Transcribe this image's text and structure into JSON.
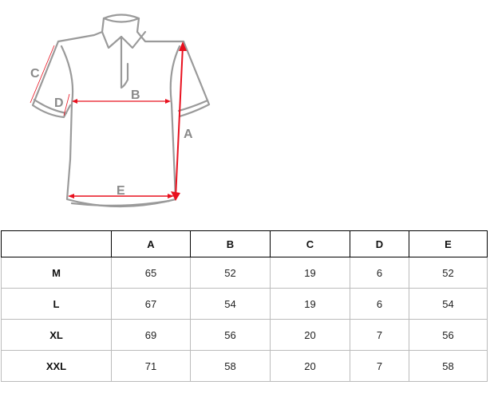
{
  "diagram": {
    "labels": {
      "a": "A",
      "b": "B",
      "c": "C",
      "d": "D",
      "e": "E"
    },
    "colors": {
      "outline": "#999999",
      "arrow": "#e8101e",
      "label": "#8a8a8a"
    }
  },
  "table": {
    "headers": [
      "",
      "A",
      "B",
      "C",
      "D",
      "E"
    ],
    "rows": [
      [
        "M",
        "65",
        "52",
        "19",
        "6",
        "52"
      ],
      [
        "L",
        "67",
        "54",
        "19",
        "6",
        "54"
      ],
      [
        "XL",
        "69",
        "56",
        "20",
        "7",
        "56"
      ],
      [
        "XXL",
        "71",
        "58",
        "20",
        "7",
        "58"
      ]
    ]
  }
}
